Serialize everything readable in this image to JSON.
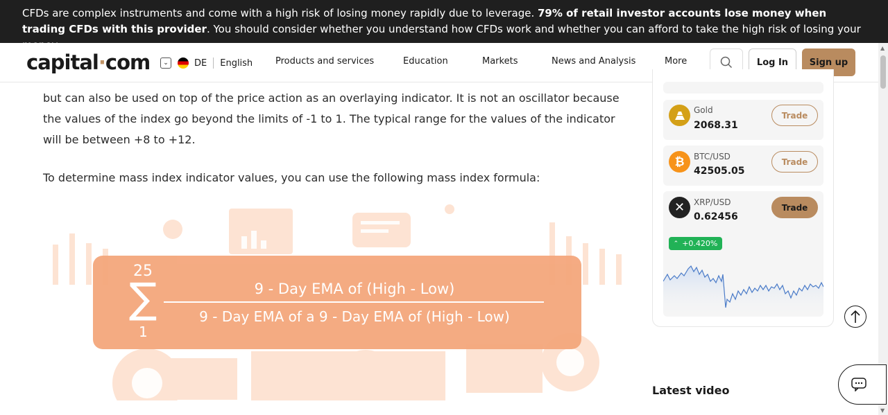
{
  "banner": {
    "text_part1": "CFDs are complex instruments and come with a high risk of losing money rapidly due to leverage. ",
    "text_bold": "79% of retail investor accounts lose money when trading CFDs with this provider",
    "text_part2": ". You should consider whether you understand how CFDs work and whether you can afford to take the high risk of losing your money."
  },
  "header": {
    "logo_left": "capital",
    "logo_dot": "·",
    "logo_right": "com",
    "country_code": "DE",
    "language": "English",
    "nav": [
      "Products and services",
      "Education",
      "Markets",
      "News and Analysis",
      "More"
    ],
    "login_label": "Log In",
    "signup_label": "Sign up"
  },
  "article": {
    "para1": "but can also be used on top of the price action as an overlaying indicator. It is not an oscillator because the values of the index go beyond the limits of -1 to 1. The typical range for the values of the indicator will be between +8 to +12.",
    "para2": "To determine mass index indicator values, you can use the following mass index formula:",
    "formula_upper": "25",
    "formula_lower": "1",
    "formula_sigma": "∑",
    "formula_numerator": "9 - Day EMA of (High - Low)",
    "formula_denominator": "9 - Day EMA of a 9 - Day EMA of (High - Low)"
  },
  "sidebar": {
    "assets": [
      {
        "name": "Gold",
        "price": "2068.31",
        "trade": "Trade",
        "icon": "gold-icon",
        "color": "#d4a017"
      },
      {
        "name": "BTC/USD",
        "price": "42505.05",
        "trade": "Trade",
        "icon": "bitcoin-icon",
        "color": "#f7931a"
      },
      {
        "name": "XRP/USD",
        "price": "0.62456",
        "trade": "Trade",
        "icon": "xrp-icon",
        "color": "#222222"
      }
    ],
    "change": "+0.420%",
    "latest_video": "Latest video"
  },
  "colors": {
    "accent": "#b98b5f",
    "banner_bg": "#1f1f1f",
    "positive": "#21b256",
    "illustration": "#f4a77c"
  }
}
